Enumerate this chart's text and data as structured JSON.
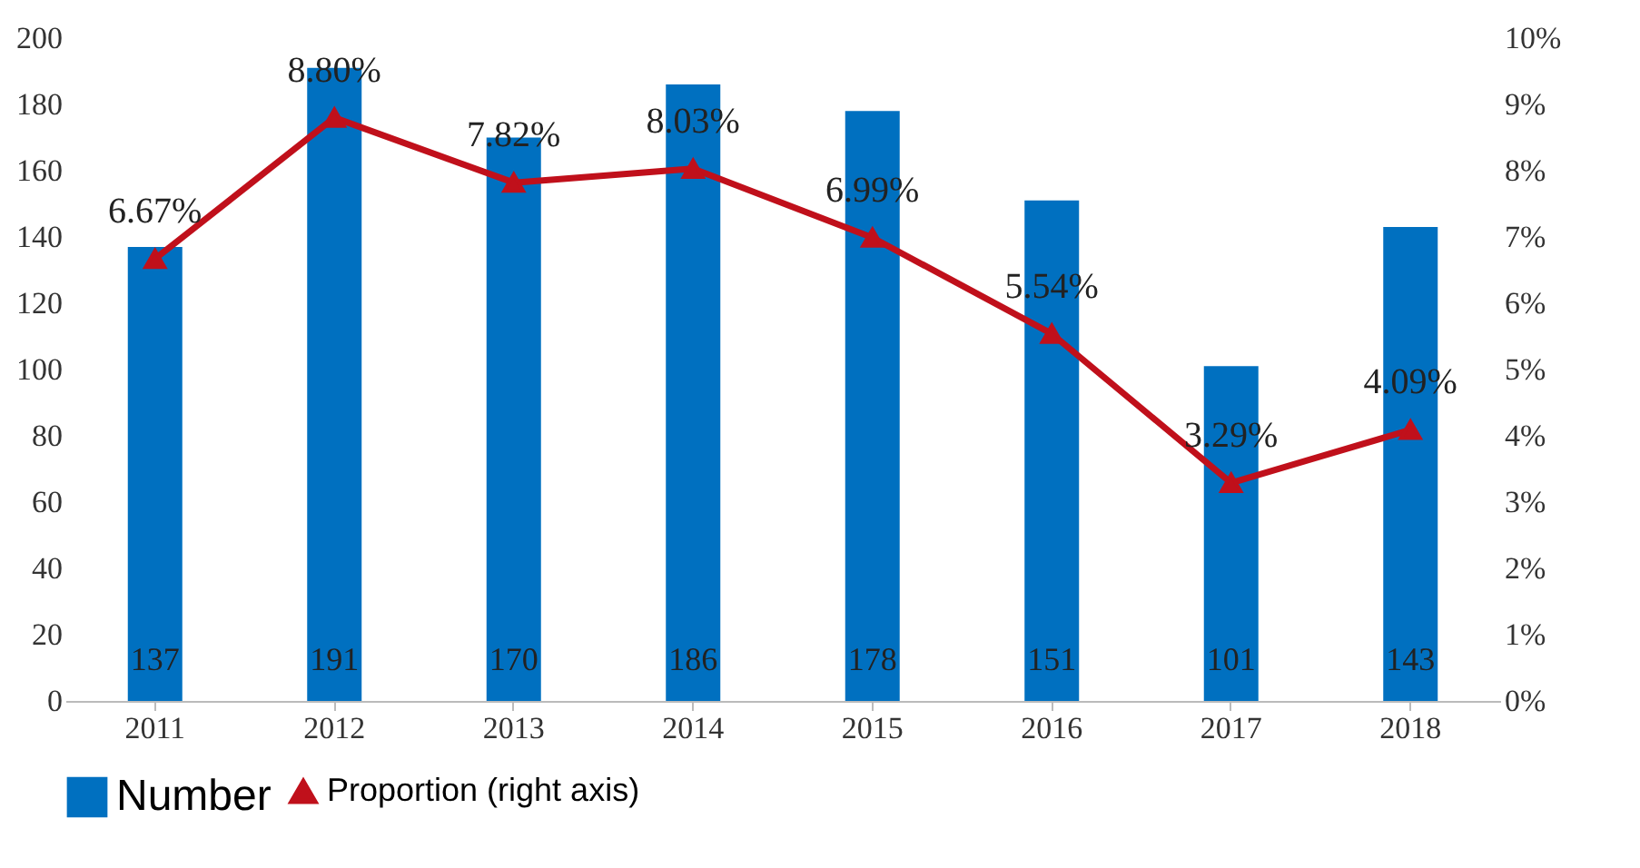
{
  "chart_data": {
    "type": "bar",
    "categories": [
      "2011",
      "2012",
      "2013",
      "2014",
      "2015",
      "2016",
      "2017",
      "2018"
    ],
    "series": [
      {
        "name": "Number",
        "color": "#0070c0",
        "values": [
          137,
          191,
          170,
          186,
          178,
          151,
          101,
          143
        ],
        "value_labels": [
          "137",
          "191",
          "170",
          "186",
          "178",
          "151",
          "101",
          "143"
        ]
      },
      {
        "name": "Proportion (right axis)",
        "type": "line",
        "axis": "y2",
        "color": "#c0101b",
        "marker": "triangle",
        "values": [
          6.67,
          8.8,
          7.82,
          8.03,
          6.99,
          5.54,
          3.29,
          4.09
        ],
        "value_labels": [
          "6.67%",
          "8.80%",
          "7.82%",
          "8.03%",
          "6.99%",
          "5.54%",
          "3.29%",
          "4.09%"
        ]
      }
    ],
    "ylim": [
      0,
      200
    ],
    "yticks": [
      0,
      20,
      40,
      60,
      80,
      100,
      120,
      140,
      160,
      180,
      200
    ],
    "y2lim": [
      0,
      10
    ],
    "y2ticks": [
      {
        "value": 0,
        "label": "0%"
      },
      {
        "value": 1,
        "label": "1%"
      },
      {
        "value": 2,
        "label": "2%"
      },
      {
        "value": 3,
        "label": "3%"
      },
      {
        "value": 4,
        "label": "4%"
      },
      {
        "value": 5,
        "label": "5%"
      },
      {
        "value": 6,
        "label": "6%"
      },
      {
        "value": 7,
        "label": "7%"
      },
      {
        "value": 8,
        "label": "8%"
      },
      {
        "value": 9,
        "label": "9%"
      },
      {
        "value": 10,
        "label": "10%"
      }
    ],
    "grid": false,
    "legend": "bottom"
  }
}
